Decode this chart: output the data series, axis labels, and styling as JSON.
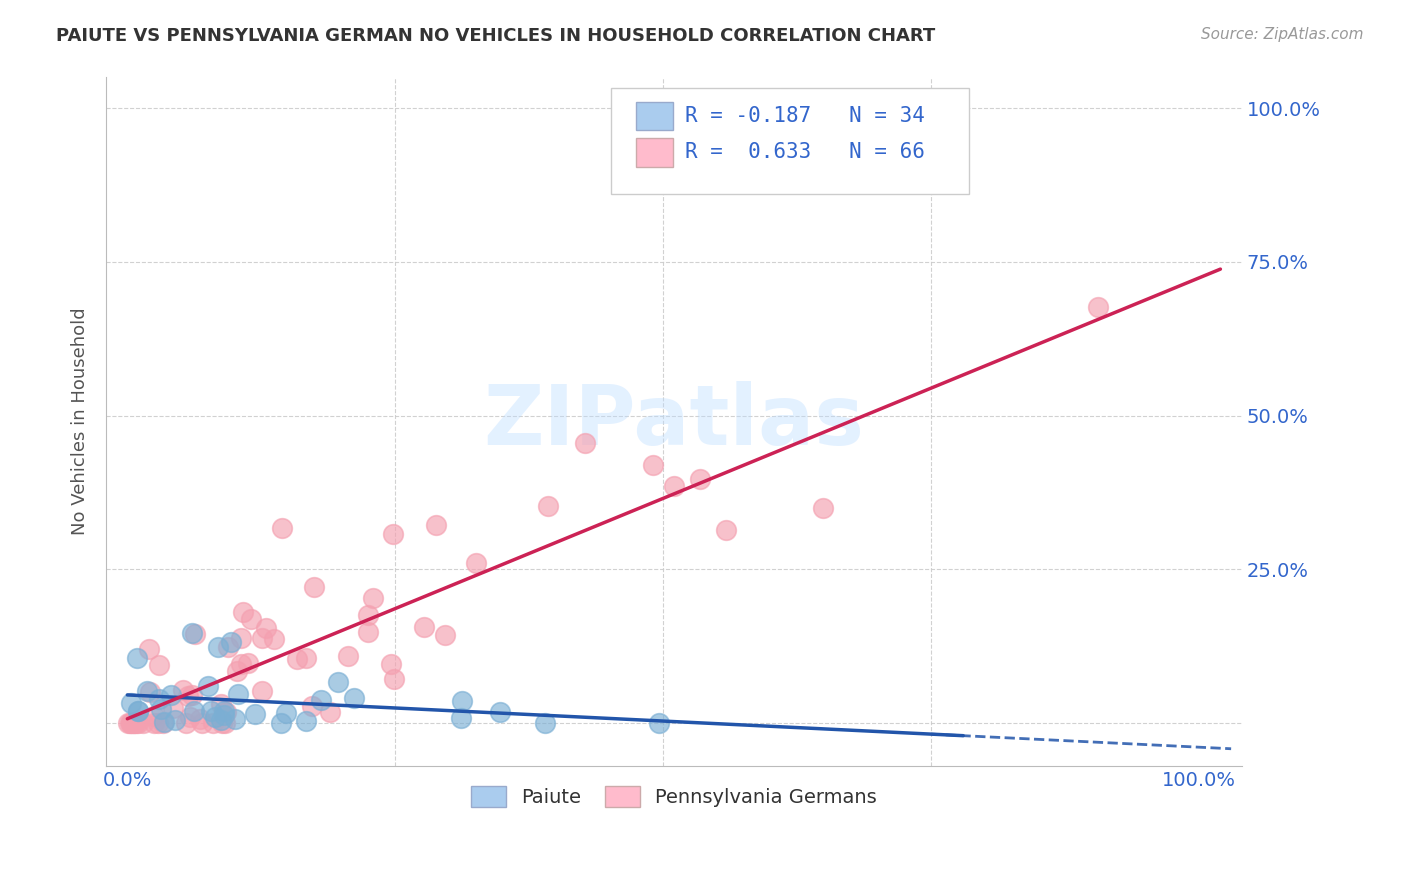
{
  "title": "PAIUTE VS PENNSYLVANIA GERMAN NO VEHICLES IN HOUSEHOLD CORRELATION CHART",
  "source": "Source: ZipAtlas.com",
  "ylabel": "No Vehicles in Household",
  "watermark": "ZIPatlas",
  "paiute_R": -0.187,
  "paiute_N": 34,
  "pa_german_R": 0.633,
  "pa_german_N": 66,
  "blue_scatter_color": "#7BAFD4",
  "pink_scatter_color": "#F4A0B0",
  "blue_line_color": "#2255AA",
  "pink_line_color": "#CC2255",
  "legend_box_blue": "#AACCEE",
  "legend_box_pink": "#FFBBCC",
  "background_color": "#FFFFFF",
  "grid_color": "#CCCCCC",
  "title_color": "#333333",
  "tick_color": "#3366CC",
  "ylabel_color": "#555555",
  "source_color": "#999999",
  "watermark_color": "#BBDDFF"
}
